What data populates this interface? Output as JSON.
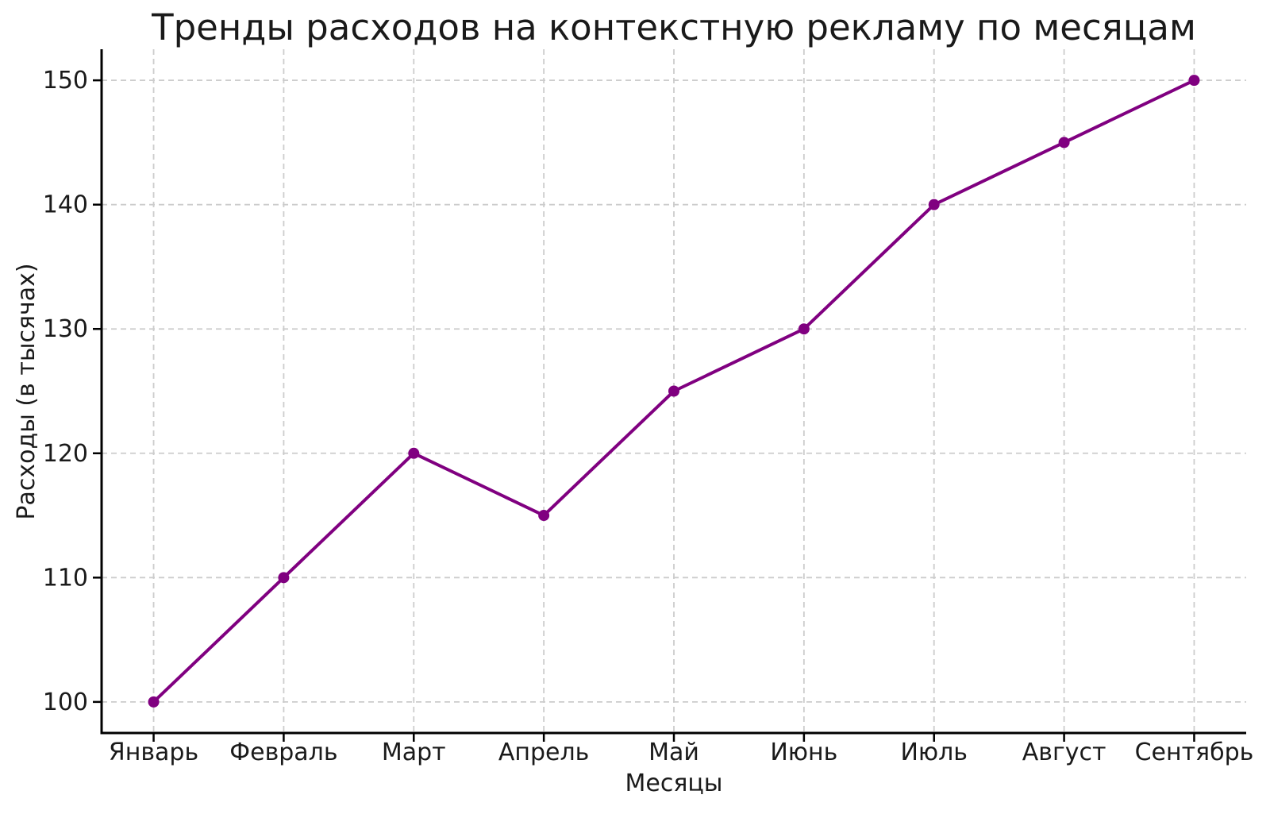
{
  "chart_data": {
    "type": "line",
    "title": "Тренды расходов на контекстную рекламу по месяцам",
    "xlabel": "Месяцы",
    "ylabel": "Расходы (в тысячах)",
    "categories": [
      "Январь",
      "Февраль",
      "Март",
      "Апрель",
      "Май",
      "Июнь",
      "Июль",
      "Август",
      "Сентябрь"
    ],
    "series": [
      {
        "name": "Расходы",
        "values": [
          100,
          110,
          120,
          115,
          125,
          130,
          140,
          145,
          150
        ]
      }
    ],
    "yticks": [
      100,
      110,
      120,
      130,
      140,
      150
    ],
    "ylim": [
      97.5,
      152.5
    ],
    "xlim": [
      -0.4,
      8.4
    ],
    "grid": "dashed-both",
    "legend_position": "none",
    "marker": "circle",
    "colors": {
      "line": "#800080",
      "marker": "#800080",
      "grid": "#cccccc",
      "spine": "#000000",
      "text": "#1a1a1a",
      "background": "#ffffff"
    }
  }
}
